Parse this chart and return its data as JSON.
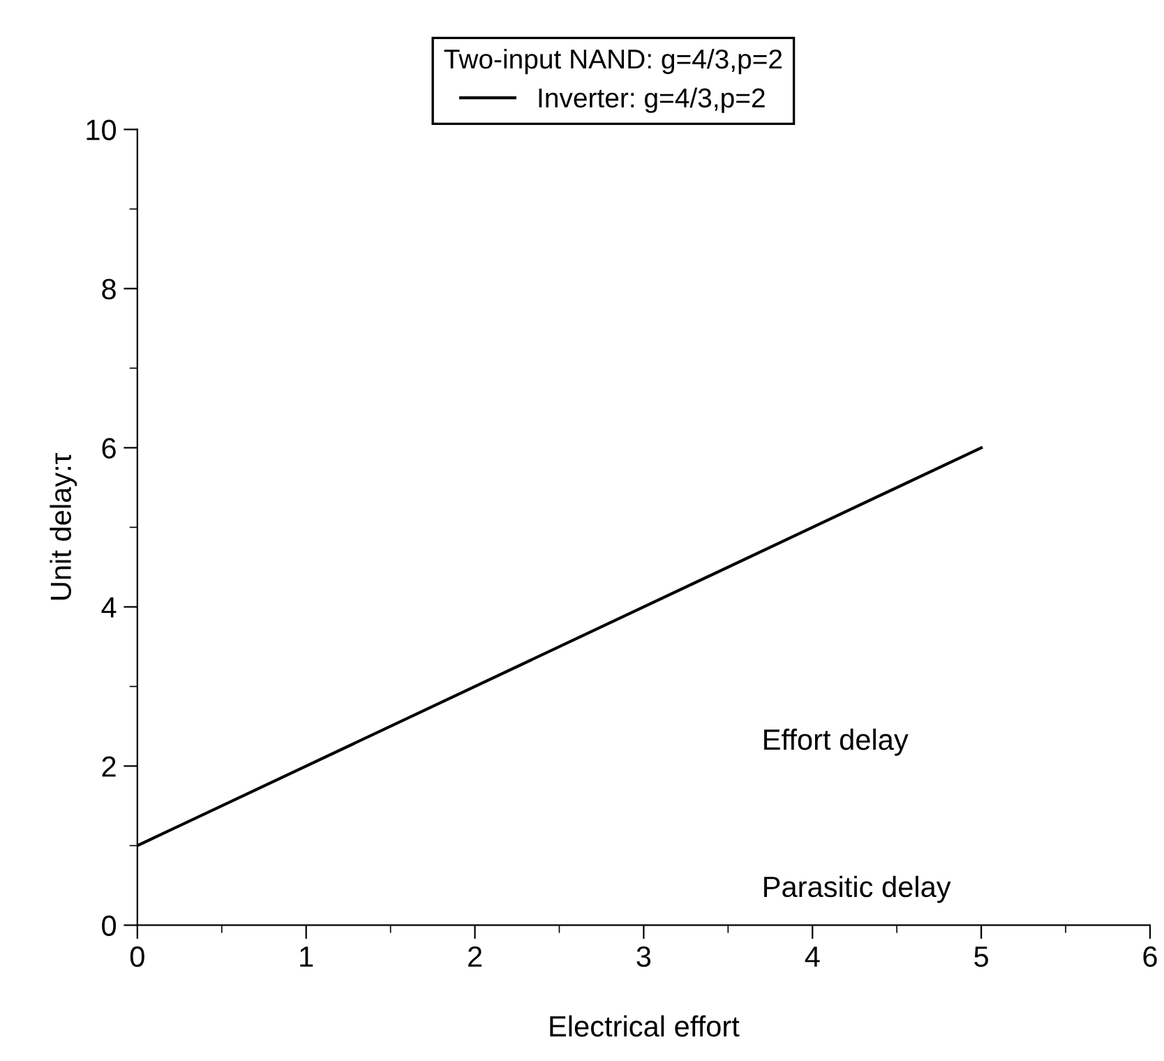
{
  "chart_data": {
    "type": "line",
    "xlabel": "Electrical effort",
    "ylabel": "Unit delay:τ",
    "legend_title": "Two-input NAND: g=4/3,p=2",
    "x": [
      0,
      5
    ],
    "series": [
      {
        "name": "Inverter: g=4/3,p=2",
        "color": "#000000",
        "values": [
          1,
          6
        ]
      }
    ],
    "xlim": [
      0,
      6
    ],
    "ylim": [
      0,
      10
    ],
    "xticks": [
      0,
      1,
      2,
      3,
      4,
      5,
      6
    ],
    "yticks": [
      0,
      2,
      4,
      6,
      8,
      10
    ],
    "annotations": [
      "Effort delay",
      "Parasitic delay"
    ],
    "grid": false,
    "legend": "top",
    "marker": "none",
    "line_style": "solid"
  }
}
